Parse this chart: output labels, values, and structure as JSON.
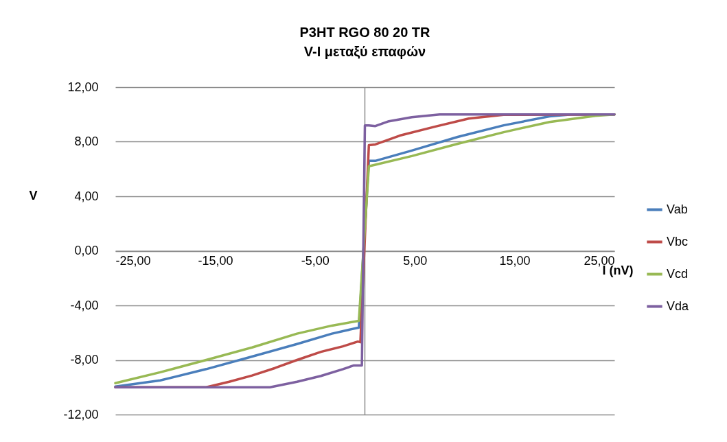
{
  "chart_data": {
    "type": "line",
    "title": "P3HT RGO 80 20 TR",
    "subtitle": "V-I μεταξύ επαφών",
    "xlabel": "I (nV)",
    "ylabel": "V",
    "xlim": [
      -25,
      25
    ],
    "ylim": [
      -12,
      12
    ],
    "xticks": [
      {
        "value": -25,
        "label": "-25,00"
      },
      {
        "value": -15,
        "label": "-15,00"
      },
      {
        "value": -5,
        "label": "-5,00"
      },
      {
        "value": 5,
        "label": "5,00"
      },
      {
        "value": 15,
        "label": "15,00"
      },
      {
        "value": 25,
        "label": "25,00"
      }
    ],
    "yticks": [
      {
        "value": -12,
        "label": "-12,00"
      },
      {
        "value": -8,
        "label": "-8,00"
      },
      {
        "value": -4,
        "label": "-4,00"
      },
      {
        "value": 0,
        "label": "0,00"
      },
      {
        "value": 4,
        "label": "4,00"
      },
      {
        "value": 8,
        "label": "8,00"
      },
      {
        "value": 12,
        "label": "12,00"
      }
    ],
    "grid": "y",
    "legend": "right",
    "marker": "none",
    "line_style": "solid",
    "series": [
      {
        "name": "Vab",
        "color": "#4a7ebb",
        "x": [
          -25,
          -20.5,
          -15.9,
          -11.3,
          -6.8,
          -3.3,
          -0.6,
          0.4,
          1.05,
          4.7,
          9.3,
          13.9,
          18.5,
          20.7,
          25
        ],
        "values": [
          -9.95,
          -9.5,
          -8.67,
          -7.75,
          -6.83,
          -6.07,
          -5.62,
          6.6,
          6.6,
          7.35,
          8.35,
          9.2,
          9.86,
          10,
          10
        ]
      },
      {
        "name": "Vbc",
        "color": "#be4b48",
        "x": [
          -25,
          -15.9,
          -13.6,
          -11.3,
          -9,
          -6.8,
          -4.4,
          -2.2,
          -0.7,
          -0.45,
          0.4,
          1.05,
          3.5,
          7,
          10.4,
          13.9,
          25
        ],
        "values": [
          -10,
          -10,
          -9.6,
          -9.14,
          -8.59,
          -8,
          -7.4,
          -7,
          -6.65,
          -6.7,
          7.75,
          7.8,
          8.45,
          9.1,
          9.7,
          9.97,
          10
        ]
      },
      {
        "name": "Vcd",
        "color": "#98b954",
        "x": [
          -25,
          -20.5,
          -15.9,
          -11.3,
          -6.8,
          -3.3,
          -0.6,
          0.4,
          4.7,
          9.3,
          13.9,
          18.5,
          23.1,
          25
        ],
        "values": [
          -9.7,
          -8.9,
          -8,
          -7.08,
          -6.07,
          -5.48,
          -5.13,
          6.2,
          6.95,
          7.85,
          8.7,
          9.45,
          9.9,
          10
        ]
      },
      {
        "name": "Vda",
        "color": "#7d60a0",
        "x": [
          -25,
          -9.5,
          -6.8,
          -4.4,
          -2.2,
          -1.1,
          -0.3,
          0,
          0.4,
          1.05,
          2.4,
          4.7,
          7.5,
          25
        ],
        "values": [
          -10,
          -10,
          -9.6,
          -9.17,
          -8.67,
          -8.4,
          -8.4,
          9.2,
          9.2,
          9.15,
          9.5,
          9.8,
          10,
          10
        ]
      }
    ]
  }
}
